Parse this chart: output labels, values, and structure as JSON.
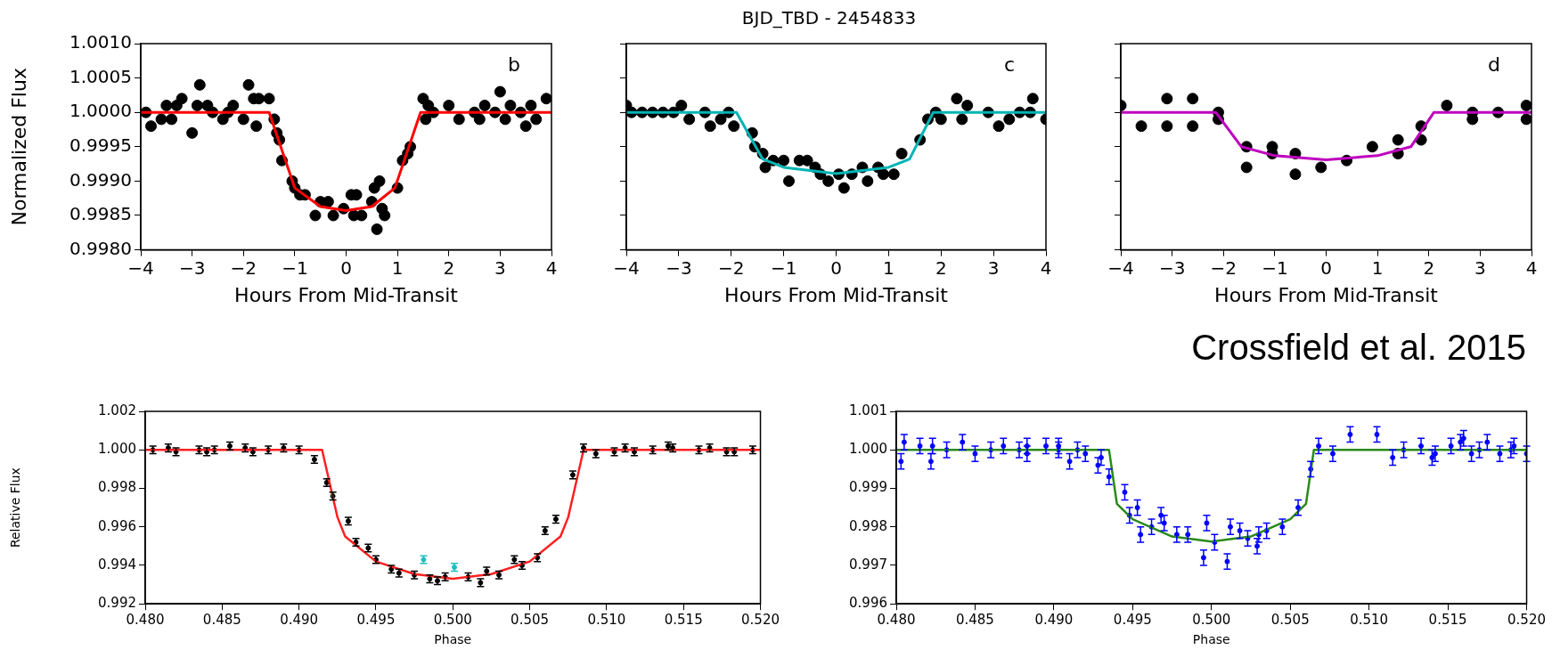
{
  "chart_data": [
    {
      "type": "scatter",
      "ylabel": "Normalized Flux",
      "xlabel": "Hours From Mid-Transit",
      "annotations": [
        "b"
      ],
      "xlim": [
        -4,
        4
      ],
      "ylim": [
        0.998,
        1.001
      ],
      "xticks": [
        {
          "value": -4,
          "label": "−4"
        },
        {
          "value": -3,
          "label": "−3"
        },
        {
          "value": -2,
          "label": "−2"
        },
        {
          "value": -1,
          "label": "−1"
        },
        0,
        1,
        2,
        3,
        4
      ],
      "yticks": [
        {
          "value": 0.998,
          "label": "0.9980"
        },
        {
          "value": 0.9985,
          "label": "0.9985"
        },
        {
          "value": 0.999,
          "label": "0.9990"
        },
        {
          "value": 0.9995,
          "label": "0.9995"
        },
        {
          "value": 1,
          "label": "1.0000"
        },
        {
          "value": 1.0005,
          "label": "1.0005"
        },
        {
          "value": 1.001,
          "label": "1.0010"
        }
      ],
      "grid": false,
      "legend": false,
      "line_style": "solid",
      "series": [
        {
          "type": "scatter",
          "marker": "circle",
          "color": "#000000",
          "x": [
            -3.9,
            -3.8,
            -3.6,
            -3.5,
            -3.4,
            -3.3,
            -3.2,
            -3.0,
            -2.9,
            -2.85,
            -2.7,
            -2.6,
            -2.4,
            -2.3,
            -2.2,
            -2.0,
            -1.9,
            -1.8,
            -1.75,
            -1.7,
            -1.5,
            -1.4,
            -1.35,
            -1.3,
            -1.25,
            -1.05,
            -1.0,
            -0.9,
            -0.8,
            -0.6,
            -0.5,
            -0.35,
            -0.25,
            -0.05,
            0.1,
            0.15,
            0.2,
            0.3,
            0.5,
            0.55,
            0.6,
            0.65,
            0.7,
            0.75,
            1.0,
            1.1,
            1.2,
            1.25,
            1.5,
            1.55,
            1.6,
            1.7,
            2.0,
            2.2,
            2.5,
            2.6,
            2.7,
            2.9,
            3.0,
            3.1,
            3.2,
            3.4,
            3.5,
            3.6,
            3.7,
            3.9
          ],
          "values": [
            1.0,
            0.9998,
            0.9999,
            1.0001,
            0.9999,
            1.0001,
            1.0002,
            0.9997,
            1.0001,
            1.0004,
            1.0001,
            1.0,
            0.9999,
            1.0,
            1.0001,
            0.9999,
            1.0004,
            1.0002,
            0.9998,
            1.0002,
            1.0002,
            0.9999,
            0.9997,
            0.9996,
            0.9993,
            0.999,
            0.9989,
            0.9988,
            0.9988,
            0.9985,
            0.9987,
            0.9987,
            0.9985,
            0.9986,
            0.9988,
            0.9985,
            0.9988,
            0.9985,
            0.9987,
            0.9989,
            0.9983,
            0.999,
            0.9986,
            0.9985,
            0.9989,
            0.9993,
            0.9994,
            0.9995,
            1.0002,
            0.9999,
            1.0001,
            1.0,
            1.0001,
            0.9999,
            1.0,
            0.9999,
            1.0001,
            1.0,
            1.0003,
            0.9999,
            1.0001,
            1.0,
            0.9998,
            1.0001,
            0.9999,
            1.0002
          ]
        },
        {
          "type": "line",
          "color": "#ff0000",
          "x": [
            -4,
            -1.5,
            -1,
            -0.5,
            0,
            0.5,
            0.95,
            1.45,
            4
          ],
          "values": [
            1,
            1,
            0.9989,
            0.99863,
            0.99857,
            0.99863,
            0.9989,
            1,
            1
          ]
        }
      ]
    },
    {
      "type": "scatter",
      "title": "BJD_TBD - 2454833",
      "xlabel": "Hours From Mid-Transit",
      "annotations": [
        "c"
      ],
      "xlim": [
        -4,
        4
      ],
      "ylim": [
        0.998,
        1.001
      ],
      "tick_labels": "x",
      "xticks": [
        {
          "value": -4,
          "label": "−4"
        },
        {
          "value": -3,
          "label": "−3"
        },
        {
          "value": -2,
          "label": "−2"
        },
        {
          "value": -1,
          "label": "−1"
        },
        0,
        1,
        2,
        3,
        4
      ],
      "yticks": [
        {
          "value": 0.998,
          "label": null
        },
        {
          "value": 0.9985,
          "label": null
        },
        {
          "value": 0.999,
          "label": null
        },
        {
          "value": 0.9995,
          "label": null
        },
        {
          "value": 1,
          "label": null
        },
        {
          "value": 1.0005,
          "label": null
        },
        {
          "value": 1.001,
          "label": null
        }
      ],
      "grid": false,
      "legend": false,
      "line_style": "solid",
      "series": [
        {
          "type": "scatter",
          "marker": "circle",
          "color": "#000000",
          "x": [
            -4,
            -3.9,
            -3.7,
            -3.5,
            -3.3,
            -3.1,
            -2.95,
            -2.8,
            -2.5,
            -2.4,
            -2.2,
            -2.05,
            -1.95,
            -1.6,
            -1.55,
            -1.4,
            -1.35,
            -1.2,
            -1.0,
            -0.9,
            -0.7,
            -0.55,
            -0.4,
            -0.3,
            -0.15,
            0.05,
            0.15,
            0.3,
            0.5,
            0.6,
            0.8,
            0.9,
            1.1,
            1.25,
            1.6,
            1.75,
            1.9,
            2.0,
            2.3,
            2.4,
            2.5,
            2.9,
            3.1,
            3.3,
            3.5,
            3.7,
            3.75,
            4.0
          ],
          "values": [
            1.0001,
            1.0,
            1.0,
            1.0,
            1.0,
            1.0,
            1.0001,
            0.9999,
            1.0,
            0.9998,
            0.9999,
            1.0,
            0.9998,
            0.9997,
            0.9995,
            0.9994,
            0.9992,
            0.9993,
            0.9993,
            0.999,
            0.9993,
            0.9993,
            0.9992,
            0.9991,
            0.999,
            0.9991,
            0.9989,
            0.9991,
            0.9992,
            0.999,
            0.9992,
            0.9991,
            0.9991,
            0.9994,
            0.9996,
            0.9999,
            1.0,
            0.9999,
            1.0002,
            0.9999,
            1.0001,
            1.0,
            0.9998,
            0.9999,
            1.0,
            1.0,
            1.0002,
            0.9999
          ]
        },
        {
          "type": "line",
          "color": "#00b4b4",
          "x": [
            -4,
            -1.9,
            -1.4,
            -1,
            0,
            1,
            1.4,
            1.85,
            4
          ],
          "values": [
            1,
            1,
            0.99932,
            0.9992,
            0.99911,
            0.9992,
            0.99932,
            1,
            1
          ]
        }
      ]
    },
    {
      "type": "scatter",
      "xlabel": "Hours From Mid-Transit",
      "annotations": [
        "d",
        "Crossfield et al. 2015"
      ],
      "xlim": [
        -4,
        4
      ],
      "ylim": [
        0.998,
        1.001
      ],
      "tick_labels": "x",
      "xticks": [
        {
          "value": -4,
          "label": "−4"
        },
        {
          "value": -3,
          "label": "−3"
        },
        {
          "value": -2,
          "label": "−2"
        },
        {
          "value": -1,
          "label": "−1"
        },
        0,
        1,
        2,
        3,
        4
      ],
      "yticks": [
        {
          "value": 0.998,
          "label": null
        },
        {
          "value": 0.9985,
          "label": null
        },
        {
          "value": 0.999,
          "label": null
        },
        {
          "value": 0.9995,
          "label": null
        },
        {
          "value": 1,
          "label": null
        },
        {
          "value": 1.0005,
          "label": null
        },
        {
          "value": 1.001,
          "label": null
        }
      ],
      "grid": false,
      "legend": false,
      "line_style": "solid",
      "series": [
        {
          "type": "scatter",
          "marker": "circle",
          "color": "#000000",
          "x": [
            -4,
            -3.6,
            -3.1,
            -3.1,
            -2.6,
            -2.6,
            -2.1,
            -2.1,
            -1.55,
            -1.55,
            -1.05,
            -1.05,
            -0.6,
            -0.6,
            -0.1,
            0.4,
            0.9,
            1.4,
            1.4,
            1.85,
            1.85,
            2.35,
            2.85,
            2.85,
            3.35,
            3.9,
            3.9
          ],
          "values": [
            1.0001,
            0.9998,
            1.0002,
            0.9998,
            1.0002,
            0.9998,
            1.0,
            0.9999,
            0.9995,
            0.9992,
            0.9995,
            0.9994,
            0.9994,
            0.9991,
            0.9992,
            0.9993,
            0.9995,
            0.9996,
            0.9994,
            0.9998,
            0.9996,
            1.0001,
            1.0,
            0.9999,
            1.0,
            1.0001,
            0.9999
          ]
        },
        {
          "type": "line",
          "color": "#bf00bf",
          "x": [
            -4,
            -2.15,
            -1.65,
            -1,
            0,
            1,
            1.65,
            2.1,
            4
          ],
          "values": [
            1,
            1,
            0.9995,
            0.99937,
            0.99931,
            0.99937,
            0.9995,
            1,
            1
          ]
        }
      ]
    },
    {
      "type": "scatter",
      "ylabel": "Relative Flux",
      "xlabel": "Phase",
      "xlim": [
        0.48,
        0.52
      ],
      "ylim": [
        0.992,
        1.002
      ],
      "xticks": [
        {
          "value": 0.48,
          "label": "0.480"
        },
        {
          "value": 0.485,
          "label": "0.485"
        },
        {
          "value": 0.49,
          "label": "0.490"
        },
        {
          "value": 0.495,
          "label": "0.495"
        },
        {
          "value": 0.5,
          "label": "0.500"
        },
        {
          "value": 0.505,
          "label": "0.505"
        },
        {
          "value": 0.51,
          "label": "0.510"
        },
        {
          "value": 0.515,
          "label": "0.515"
        },
        {
          "value": 0.52,
          "label": "0.520"
        }
      ],
      "yticks": [
        {
          "value": 0.992,
          "label": "0.992"
        },
        {
          "value": 0.994,
          "label": "0.994"
        },
        {
          "value": 0.996,
          "label": "0.996"
        },
        {
          "value": 0.998,
          "label": "0.998"
        },
        {
          "value": 1,
          "label": "1.000"
        },
        {
          "value": 1.002,
          "label": "1.002"
        }
      ],
      "grid": false,
      "legend": false,
      "line_style": "solid",
      "series": [
        {
          "type": "scatter",
          "marker": "circle",
          "color": "#000000",
          "x": [
            0.4805,
            0.4815,
            0.482,
            0.4835,
            0.484,
            0.4845,
            0.4855,
            0.4865,
            0.487,
            0.488,
            0.489,
            0.49,
            0.491,
            0.4918,
            0.4922,
            0.4932,
            0.4937,
            0.4945,
            0.495,
            0.496,
            0.4965,
            0.4975,
            0.4985,
            0.499,
            0.4995,
            0.501,
            0.5018,
            0.5022,
            0.503,
            0.504,
            0.5045,
            0.5055,
            0.506,
            0.5067,
            0.5078,
            0.5085,
            0.5093,
            0.5105,
            0.5112,
            0.5118,
            0.513,
            0.514,
            0.5143,
            0.516,
            0.5167,
            0.5178,
            0.5183,
            0.5195
          ],
          "values": [
            1.0,
            1.0001,
            0.9999,
            1.0,
            0.9999,
            1.0,
            1.0002,
            1.0001,
            0.9999,
            1.0,
            1.0001,
            1.0,
            0.9995,
            0.9983,
            0.9976,
            0.9963,
            0.9952,
            0.9949,
            0.9943,
            0.9938,
            0.9936,
            0.9935,
            0.9933,
            0.9932,
            0.9934,
            0.9934,
            0.9931,
            0.9937,
            0.9935,
            0.9943,
            0.994,
            0.9944,
            0.9958,
            0.9964,
            0.9987,
            1.0001,
            0.9998,
            0.9999,
            1.0001,
            0.9999,
            1.0,
            1.0002,
            1.0001,
            1.0,
            1.0001,
            0.9999,
            0.9999,
            1.0
          ],
          "errors": [
            0.0002,
            0.0002,
            0.0002,
            0.0002,
            0.0002,
            0.0002,
            0.0002,
            0.0002,
            0.0002,
            0.0002,
            0.0002,
            0.0002,
            0.0002,
            0.0002,
            0.0002,
            0.0002,
            0.0002,
            0.0002,
            0.0002,
            0.0002,
            0.0002,
            0.0002,
            0.0002,
            0.0002,
            0.0002,
            0.0002,
            0.0002,
            0.0002,
            0.0002,
            0.0002,
            0.0002,
            0.0002,
            0.0002,
            0.0002,
            0.0002,
            0.0002,
            0.0002,
            0.0002,
            0.0002,
            0.0002,
            0.0002,
            0.0002,
            0.0002,
            0.0002,
            0.0002,
            0.0002,
            0.0002,
            0.0002
          ]
        },
        {
          "type": "scatter",
          "marker": "circle",
          "color": "#1fbfbf",
          "x": [
            0.4981,
            0.5001
          ],
          "values": [
            0.9943,
            0.9939
          ],
          "errors": [
            0.0002,
            0.0002
          ]
        },
        {
          "type": "line",
          "color": "#ff2020",
          "x": [
            0.48,
            0.4915,
            0.4925,
            0.493,
            0.495,
            0.4975,
            0.5,
            0.5025,
            0.505,
            0.507,
            0.5075,
            0.5085,
            0.52
          ],
          "values": [
            1,
            1,
            0.9965,
            0.9955,
            0.9942,
            0.99355,
            0.9933,
            0.99355,
            0.9942,
            0.9955,
            0.9965,
            1,
            1
          ]
        }
      ]
    },
    {
      "type": "scatter",
      "xlabel": "Phase",
      "xlim": [
        0.48,
        0.52
      ],
      "ylim": [
        0.996,
        1.001
      ],
      "xticks": [
        {
          "value": 0.48,
          "label": "0.480"
        },
        {
          "value": 0.485,
          "label": "0.485"
        },
        {
          "value": 0.49,
          "label": "0.490"
        },
        {
          "value": 0.495,
          "label": "0.495"
        },
        {
          "value": 0.5,
          "label": "0.500"
        },
        {
          "value": 0.505,
          "label": "0.505"
        },
        {
          "value": 0.51,
          "label": "0.510"
        },
        {
          "value": 0.515,
          "label": "0.515"
        },
        {
          "value": 0.52,
          "label": "0.520"
        }
      ],
      "yticks": [
        {
          "value": 0.996,
          "label": "0.996"
        },
        {
          "value": 0.997,
          "label": "0.997"
        },
        {
          "value": 0.998,
          "label": "0.998"
        },
        {
          "value": 0.999,
          "label": "0.999"
        },
        {
          "value": 1,
          "label": "1.000"
        },
        {
          "value": 1.001,
          "label": "1.001"
        }
      ],
      "grid": false,
      "legend": false,
      "line_style": "solid",
      "series": [
        {
          "type": "scatter",
          "marker": "circle",
          "color": "#0000ff",
          "x": [
            0.4803,
            0.4805,
            0.4815,
            0.4822,
            0.4823,
            0.4832,
            0.4842,
            0.485,
            0.486,
            0.4868,
            0.4878,
            0.4883,
            0.4883,
            0.4895,
            0.4903,
            0.4903,
            0.491,
            0.4915,
            0.492,
            0.4928,
            0.493,
            0.4935,
            0.4945,
            0.4948,
            0.4953,
            0.4955,
            0.4962,
            0.4968,
            0.497,
            0.4978,
            0.4985,
            0.4995,
            0.4997,
            0.5002,
            0.501,
            0.5012,
            0.5018,
            0.5023,
            0.5029,
            0.503,
            0.5035,
            0.5045,
            0.5055,
            0.5063,
            0.5068,
            0.5077,
            0.5088,
            0.5105,
            0.5115,
            0.5122,
            0.5133,
            0.514,
            0.5142,
            0.5152,
            0.5158,
            0.516,
            0.5165,
            0.517,
            0.5175,
            0.5183,
            0.519,
            0.5192,
            0.52
          ],
          "values": [
            0.9997,
            1.0002,
            1.0001,
            0.9997,
            1.0001,
            1.0,
            1.0002,
            0.9999,
            1.0,
            1.0001,
            1.0,
            1.0001,
            0.9999,
            1.0001,
            1.0,
            1.0001,
            0.9997,
            1.0,
            0.9999,
            0.9996,
            0.9998,
            0.9993,
            0.9989,
            0.9983,
            0.9985,
            0.9978,
            0.998,
            0.9983,
            0.9981,
            0.9978,
            0.9978,
            0.9972,
            0.9981,
            0.9976,
            0.9971,
            0.998,
            0.9979,
            0.9977,
            0.9975,
            0.9978,
            0.9979,
            0.998,
            0.9985,
            0.9995,
            1.0001,
            0.9999,
            1.0004,
            1.0004,
            0.9998,
            1.0,
            1.0001,
            0.9998,
            0.9999,
            1.0001,
            1.0002,
            1.0003,
            0.9999,
            1.0,
            1.0002,
            0.9999,
            1.0,
            1.0001,
            0.9999
          ],
          "errors": [
            0.0002,
            0.0002,
            0.0002,
            0.0002,
            0.0002,
            0.0002,
            0.0002,
            0.0002,
            0.0002,
            0.0002,
            0.0002,
            0.0002,
            0.0002,
            0.0002,
            0.0002,
            0.0002,
            0.0002,
            0.0002,
            0.0002,
            0.0002,
            0.0002,
            0.0002,
            0.0002,
            0.0002,
            0.0002,
            0.0002,
            0.0002,
            0.0002,
            0.0002,
            0.0002,
            0.0002,
            0.0002,
            0.0002,
            0.0002,
            0.0002,
            0.0002,
            0.0002,
            0.0002,
            0.0002,
            0.0002,
            0.0002,
            0.0002,
            0.0002,
            0.0002,
            0.0002,
            0.0002,
            0.0002,
            0.0002,
            0.0002,
            0.0002,
            0.0002,
            0.0002,
            0.0002,
            0.0002,
            0.0002,
            0.0002,
            0.0002,
            0.0002,
            0.0002,
            0.0002,
            0.0002,
            0.0002,
            0.0002
          ]
        },
        {
          "type": "line",
          "color": "#2a8a1a",
          "x": [
            0.48,
            0.4935,
            0.494,
            0.495,
            0.4975,
            0.5,
            0.5025,
            0.505,
            0.506,
            0.5065,
            0.52
          ],
          "values": [
            1,
            1,
            0.9986,
            0.9982,
            0.99775,
            0.99762,
            0.99775,
            0.9982,
            0.9986,
            1,
            1
          ]
        }
      ]
    }
  ]
}
